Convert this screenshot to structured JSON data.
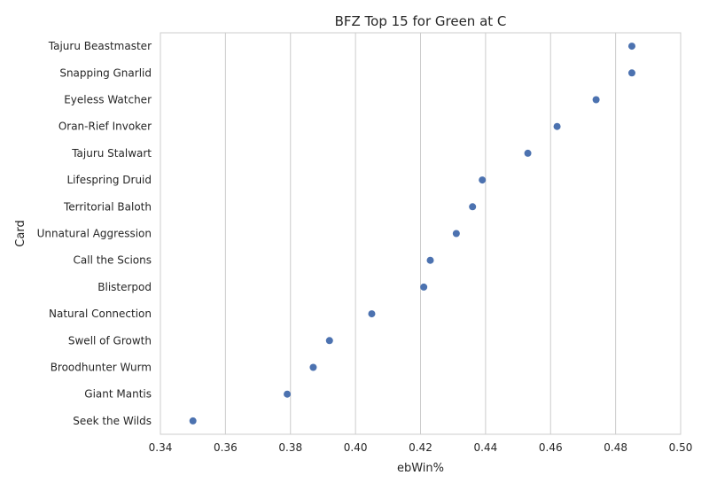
{
  "chart_data": {
    "type": "scatter",
    "title": "BFZ Top 15 for Green at C",
    "xlabel": "ebWin%",
    "ylabel": "Card",
    "xlim": [
      0.34,
      0.5
    ],
    "xticks": [
      "0.34",
      "0.36",
      "0.38",
      "0.40",
      "0.42",
      "0.44",
      "0.46",
      "0.48",
      "0.50"
    ],
    "grid": true,
    "point_color": "#4C72B0",
    "categories": [
      "Tajuru Beastmaster",
      "Snapping Gnarlid",
      "Eyeless Watcher",
      "Oran-Rief Invoker",
      "Tajuru Stalwart",
      "Lifespring Druid",
      "Territorial Baloth",
      "Unnatural Aggression",
      "Call the Scions",
      "Blisterpod",
      "Natural Connection",
      "Swell of Growth",
      "Broodhunter Wurm",
      "Giant Mantis",
      "Seek the Wilds"
    ],
    "values": [
      0.485,
      0.485,
      0.474,
      0.462,
      0.453,
      0.439,
      0.436,
      0.431,
      0.423,
      0.421,
      0.405,
      0.392,
      0.387,
      0.379,
      0.35
    ]
  }
}
